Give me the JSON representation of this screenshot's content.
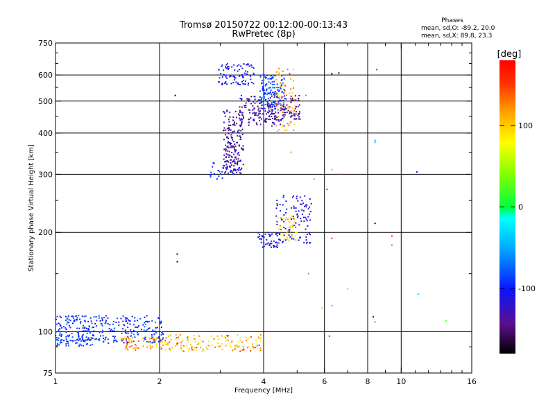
{
  "chart_data": {
    "type": "scatter",
    "title": "Tromsø 20150722 00:12:00-00:13:43",
    "subtitle": "RwPretec (8p)",
    "xlabel": "Frequency [MHz]",
    "ylabel": "Stationary phase Virtual Height [km]",
    "x_scale": "log",
    "y_scale": "log",
    "xlim": [
      1,
      16
    ],
    "ylim": [
      75,
      750
    ],
    "x_ticks": [
      1,
      2,
      4,
      6,
      8,
      10,
      16
    ],
    "x_tick_labels": [
      "1",
      "2",
      "4",
      "6",
      "8",
      "10",
      "16"
    ],
    "x_minor_ticks": [
      3,
      5,
      7,
      9,
      11,
      12,
      13,
      14,
      15
    ],
    "y_ticks": [
      75,
      100,
      200,
      300,
      400,
      500,
      600,
      750
    ],
    "y_tick_labels": [
      "75",
      "100",
      "200",
      "300",
      "400",
      "500",
      "600",
      "750"
    ],
    "y_minor_ticks": [
      90,
      150,
      250,
      350,
      450,
      550,
      650,
      700
    ],
    "vertical_gridlines": [
      2,
      4,
      6,
      8,
      10
    ],
    "horizontal_gridlines": [
      100,
      200,
      300,
      400,
      500,
      600
    ],
    "grid": true,
    "phase_summary": {
      "heading": "Phases",
      "line1": "mean, sd,O: -89.2, 20.0",
      "line2": "mean, sd,X:  89.8, 23.3"
    },
    "colorbar": {
      "label": "[deg]",
      "range": [
        -180,
        180
      ],
      "ticks": [
        100,
        0,
        -100
      ],
      "tick_labels": [
        "100",
        "0",
        "-100"
      ]
    },
    "point_clusters": [
      {
        "x": [
          1.0,
          2.05
        ],
        "y": [
          92,
          112
        ],
        "phase": [
          -110,
          -70
        ],
        "n": 300
      },
      {
        "x": [
          1.0,
          1.3
        ],
        "y": [
          90,
          98
        ],
        "phase": [
          -110,
          -75
        ],
        "n": 40
      },
      {
        "x": [
          1.55,
          2.05
        ],
        "y": [
          88,
          96
        ],
        "phase": [
          90,
          150
        ],
        "n": 70
      },
      {
        "x": [
          2.05,
          3.95
        ],
        "y": [
          87,
          98
        ],
        "phase": [
          60,
          160
        ],
        "n": 150
      },
      {
        "x": [
          2.8,
          3.3
        ],
        "y": [
          290,
          330
        ],
        "phase": [
          -110,
          -80
        ],
        "n": 25
      },
      {
        "x": [
          3.05,
          3.5
        ],
        "y": [
          300,
          470
        ],
        "phase": [
          -160,
          -105
        ],
        "n": 200
      },
      {
        "x": [
          3.4,
          4.6
        ],
        "y": [
          420,
          520
        ],
        "phase": [
          -160,
          -110
        ],
        "n": 170
      },
      {
        "x": [
          3.9,
          4.6
        ],
        "y": [
          470,
          600
        ],
        "phase": [
          -105,
          -70
        ],
        "n": 120
      },
      {
        "x": [
          2.95,
          3.75
        ],
        "y": [
          560,
          650
        ],
        "phase": [
          -120,
          -85
        ],
        "n": 90
      },
      {
        "x": [
          4.35,
          4.95
        ],
        "y": [
          400,
          630
        ],
        "phase": [
          80,
          150
        ],
        "n": 70
      },
      {
        "x": [
          4.55,
          5.1
        ],
        "y": [
          440,
          520
        ],
        "phase": [
          -165,
          -120
        ],
        "n": 50
      },
      {
        "x": [
          3.85,
          4.4
        ],
        "y": [
          180,
          200
        ],
        "phase": [
          -130,
          -95
        ],
        "n": 45
      },
      {
        "x": [
          4.35,
          5.5
        ],
        "y": [
          185,
          260
        ],
        "phase": [
          -130,
          -95
        ],
        "n": 110
      },
      {
        "x": [
          4.35,
          5.0
        ],
        "y": [
          185,
          225
        ],
        "phase": [
          60,
          130
        ],
        "n": 45
      }
    ],
    "sparse_points": [
      {
        "x": 2.22,
        "y": 520,
        "phase": -180
      },
      {
        "x": 2.25,
        "y": 172,
        "phase": -180
      },
      {
        "x": 2.25,
        "y": 163,
        "phase": -180
      },
      {
        "x": 4.2,
        "y": 470,
        "phase": 90
      },
      {
        "x": 4.8,
        "y": 350,
        "phase": 120
      },
      {
        "x": 5.3,
        "y": 520,
        "phase": 130
      },
      {
        "x": 5.6,
        "y": 290,
        "phase": 120
      },
      {
        "x": 6.3,
        "y": 605,
        "phase": -180
      },
      {
        "x": 6.3,
        "y": 310,
        "phase": -20
      },
      {
        "x": 6.6,
        "y": 608,
        "phase": -180
      },
      {
        "x": 6.7,
        "y": 300,
        "phase": 150
      },
      {
        "x": 6.1,
        "y": 270,
        "phase": 160
      },
      {
        "x": 6.3,
        "y": 192,
        "phase": 170
      },
      {
        "x": 6.3,
        "y": 120,
        "phase": -30
      },
      {
        "x": 6.2,
        "y": 97,
        "phase": 170
      },
      {
        "x": 7.0,
        "y": 135,
        "phase": 110
      },
      {
        "x": 5.4,
        "y": 150,
        "phase": 130
      },
      {
        "x": 5.9,
        "y": 118,
        "phase": 100
      },
      {
        "x": 8.4,
        "y": 380,
        "phase": -40
      },
      {
        "x": 8.4,
        "y": 375,
        "phase": -40
      },
      {
        "x": 8.4,
        "y": 213,
        "phase": -180
      },
      {
        "x": 8.5,
        "y": 623,
        "phase": 170
      },
      {
        "x": 8.3,
        "y": 111,
        "phase": -140
      },
      {
        "x": 8.4,
        "y": 107,
        "phase": -40
      },
      {
        "x": 9.4,
        "y": 195,
        "phase": 160
      },
      {
        "x": 9.4,
        "y": 183,
        "phase": 140
      },
      {
        "x": 11.1,
        "y": 305,
        "phase": -120
      },
      {
        "x": 11.2,
        "y": 130,
        "phase": -40
      },
      {
        "x": 13.5,
        "y": 108,
        "phase": 20
      }
    ]
  }
}
